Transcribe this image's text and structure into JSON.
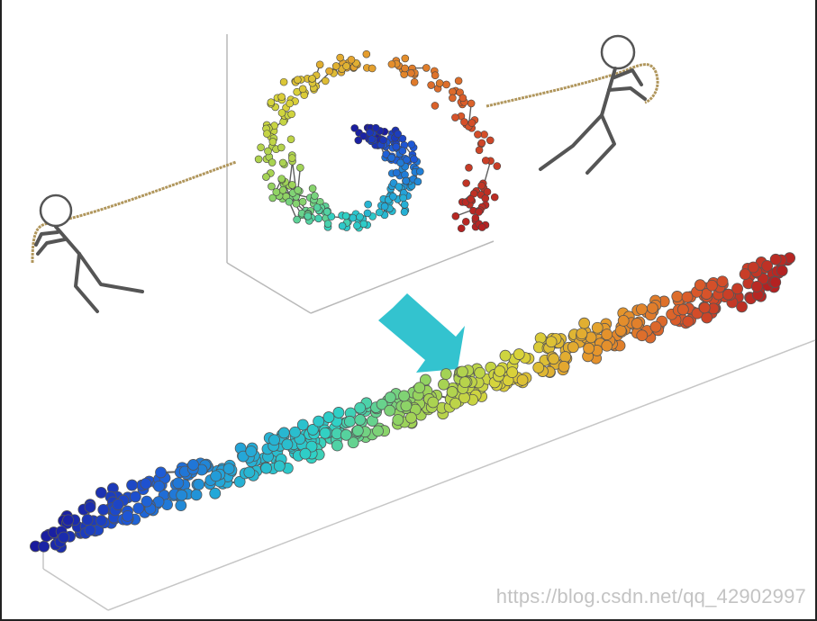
{
  "figure": {
    "watermark": "https://blog.csdn.net/qq_42902997",
    "colors": {
      "background": "#ffffff",
      "frame": "#222222",
      "rope": "#b0965c",
      "figure_stroke": "#555555",
      "edge_gray": "#5e5e5e",
      "arrow": "#33c3cf",
      "box_line": "#b9b9b9",
      "gradient": [
        "#1a1a9c",
        "#1e57d6",
        "#24a7d8",
        "#2fd1c6",
        "#9ad35a",
        "#d8d43a",
        "#e69a2c",
        "#d8542a",
        "#b21f22"
      ]
    },
    "icons": {
      "left_puller": "stick-figure-pulling-icon",
      "right_puller": "stick-figure-pulling-icon",
      "arrow": "down-right-arrow-icon"
    }
  }
}
